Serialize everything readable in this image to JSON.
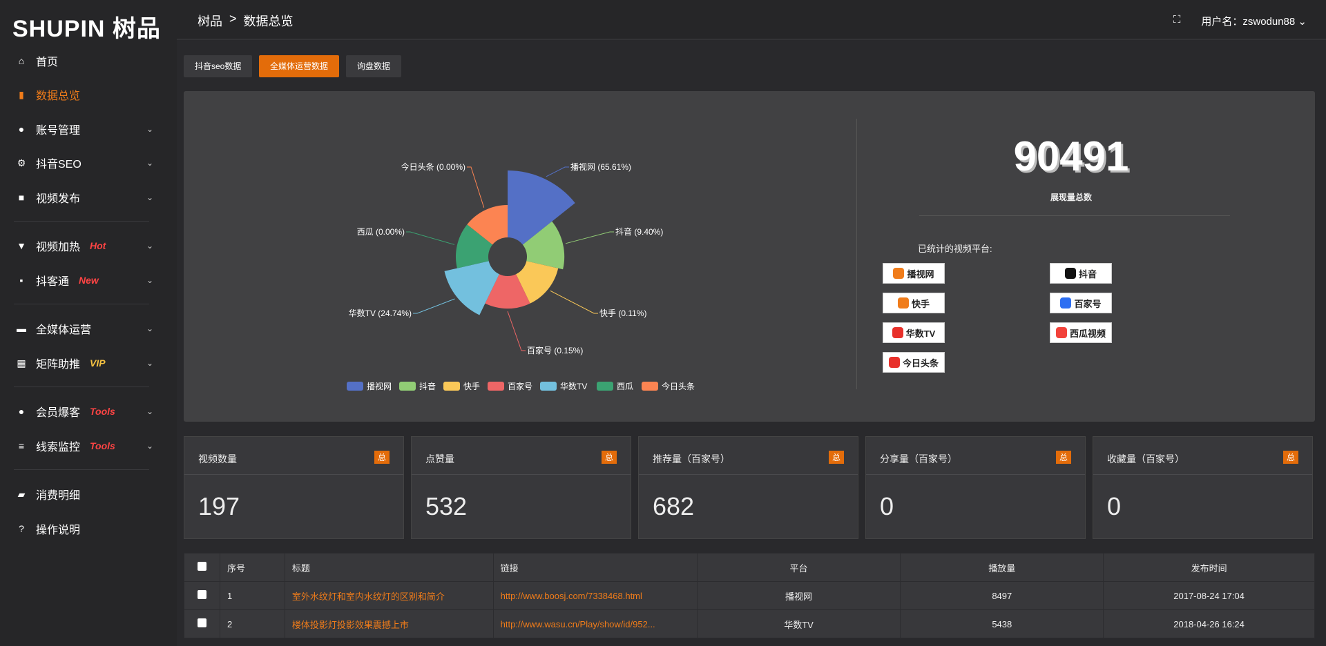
{
  "logo": "SHUPIN 树品",
  "sidebar": {
    "items": [
      {
        "label": "首页",
        "icon": "home-icon",
        "glyph": "⌂"
      },
      {
        "label": "数据总览",
        "icon": "bar-chart-icon",
        "glyph": "▮",
        "active": true
      },
      {
        "label": "账号管理",
        "icon": "user-icon",
        "glyph": "●",
        "chev": true
      },
      {
        "label": "抖音SEO",
        "icon": "gear-icon",
        "glyph": "⚙",
        "chev": true
      },
      {
        "label": "视频发布",
        "icon": "camera-icon",
        "glyph": "■",
        "chev": true
      },
      {
        "label": "视频加热",
        "icon": "flag-icon",
        "glyph": "▼",
        "badge": "Hot",
        "badgeColor": "#ff4444",
        "chev": true
      },
      {
        "label": "抖客通",
        "icon": "chat-icon",
        "glyph": "▪",
        "badge": "New",
        "badgeColor": "#ff4444",
        "chev": true
      },
      {
        "label": "全媒体运营",
        "icon": "monitor-icon",
        "glyph": "▬",
        "chev": true
      },
      {
        "label": "矩阵助推",
        "icon": "grid-icon",
        "glyph": "▦",
        "badge": "VIP",
        "badgeColor": "#f5c242",
        "chev": true
      },
      {
        "label": "会员爆客",
        "icon": "person-icon",
        "glyph": "●",
        "badge": "Tools",
        "badgeColor": "#ff4444",
        "chev": true
      },
      {
        "label": "线索监控",
        "icon": "sliders-icon",
        "glyph": "≡",
        "badge": "Tools",
        "badgeColor": "#ff4444",
        "chev": true
      },
      {
        "label": "消费明细",
        "icon": "wallet-icon",
        "glyph": "▰"
      },
      {
        "label": "操作说明",
        "icon": "help-icon",
        "glyph": "?"
      }
    ]
  },
  "header": {
    "breadcrumb": [
      "树品",
      ">",
      "数据总览"
    ],
    "user": "用户名：zswodun88"
  },
  "tabs": [
    {
      "label": "抖音seo数据"
    },
    {
      "label": "全媒体运营数据",
      "active": true
    },
    {
      "label": "询盘数据"
    }
  ],
  "summary": {
    "total": "90491",
    "total_label": "展现量总数",
    "platforms_label": "已统计的视频平台:",
    "platforms": [
      "播视网",
      "抖音",
      "快手",
      "百家号",
      "华数TV",
      "西瓜视频",
      "今日头条"
    ]
  },
  "chart_data": {
    "type": "pie",
    "rose": true,
    "categories": [
      "播视网",
      "抖音",
      "快手",
      "百家号",
      "华数TV",
      "西瓜",
      "今日头条"
    ],
    "values": [
      65.61,
      9.4,
      0.11,
      0.15,
      24.74,
      0.0,
      0.0
    ],
    "labels": [
      "播视网 (65.61%)",
      "抖音 (9.40%)",
      "快手 (0.11%)",
      "百家号 (0.15%)",
      "华数TV (24.74%)",
      "西瓜 (0.00%)",
      "今日头条 (0.00%)"
    ],
    "colors": [
      "#5470c6",
      "#91cc75",
      "#fac858",
      "#ee6666",
      "#73c0de",
      "#3ba272",
      "#fc8452"
    ],
    "legend": "bottom"
  },
  "stats": [
    {
      "title": "视频数量",
      "badge": "总",
      "value": "197"
    },
    {
      "title": "点赞量",
      "badge": "总",
      "value": "532"
    },
    {
      "title": "推荐量（百家号）",
      "badge": "总",
      "value": "682"
    },
    {
      "title": "分享量（百家号）",
      "badge": "总",
      "value": "0"
    },
    {
      "title": "收藏量（百家号）",
      "badge": "总",
      "value": "0"
    }
  ],
  "table": {
    "headers": [
      "序号",
      "标题",
      "链接",
      "平台",
      "播放量",
      "发布时间"
    ],
    "rows": [
      [
        "1",
        "室外水纹灯和室内水纹灯的区别和简介",
        "http://www.boosj.com/7338468.html",
        "播视网",
        "8497",
        "2017-08-24 17:04"
      ],
      [
        "2",
        "楼体投影灯投影效果震撼上市",
        "http://www.wasu.cn/Play/show/id/952...",
        "华数TV",
        "5438",
        "2018-04-26 16:24"
      ]
    ]
  }
}
